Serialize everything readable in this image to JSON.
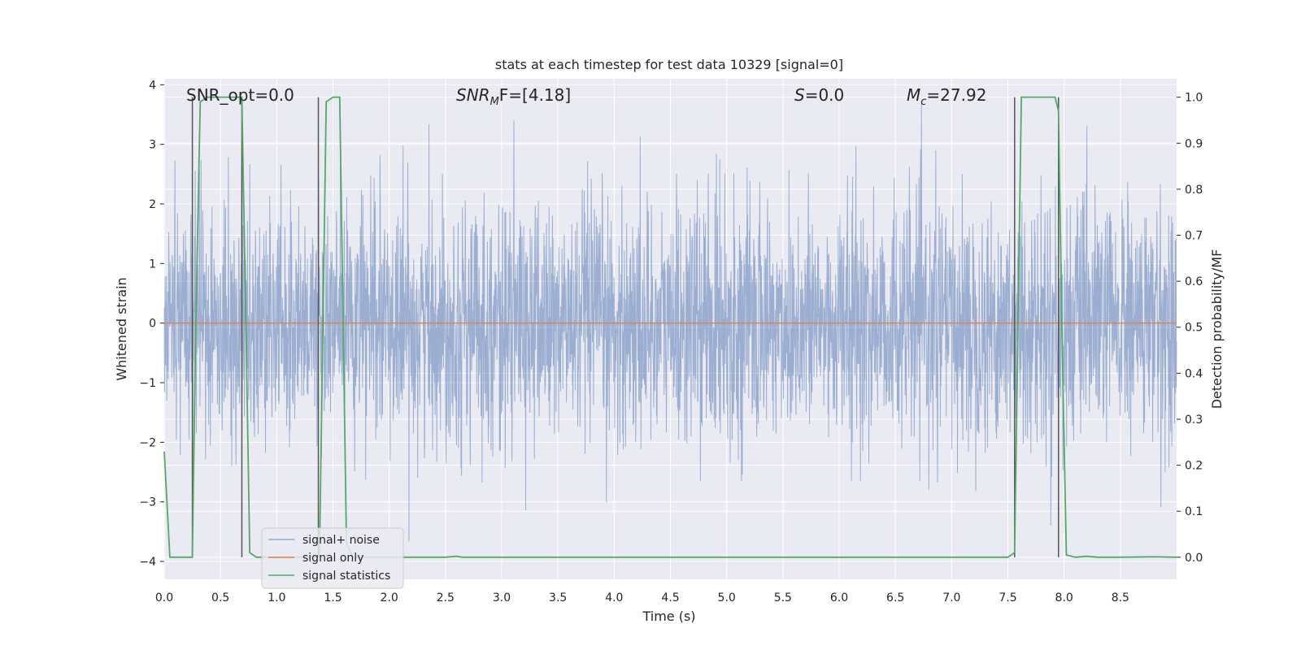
{
  "chart_data": {
    "type": "line",
    "title": "stats at each timestep for test data 10329 [signal=0]",
    "xlabel": "Time (s)",
    "ylabel": "Whitened strain",
    "ylabel_right": "Detection probability/MF",
    "xlim": [
      0.0,
      9.0
    ],
    "ylim": [
      -4.3,
      4.1
    ],
    "ylim_right": [
      -0.048,
      1.04
    ],
    "xticks": [
      "0.0",
      "0.5",
      "1.0",
      "1.5",
      "2.0",
      "2.5",
      "3.0",
      "3.5",
      "4.0",
      "4.5",
      "5.0",
      "5.5",
      "6.0",
      "6.5",
      "7.0",
      "7.5",
      "8.0",
      "8.5"
    ],
    "yticks": [
      "4",
      "3",
      "2",
      "1",
      "0",
      "−1",
      "−2",
      "−3",
      "−4"
    ],
    "yticks_right": [
      "1.0",
      "0.9",
      "0.8",
      "0.7",
      "0.6",
      "0.5",
      "0.4",
      "0.3",
      "0.2",
      "0.1",
      "0.0"
    ],
    "annotations": {
      "snr_opt": "SNR_opt=0.0",
      "snr_mf": "SNR",
      "snr_mf_sub": "M",
      "snr_mf_rest": "F=[4.18]",
      "s_label": "S",
      "s_value": "=0.0",
      "mc_label": "M",
      "mc_sub": "c",
      "mc_value": "=27.92"
    },
    "legend": {
      "position": "lower-left",
      "entries": [
        "signal+ noise",
        "signal only",
        "signal statistics"
      ]
    },
    "colors": {
      "noise": "#4c72b0",
      "signal": "#dd8452",
      "statistics": "#55a868",
      "markers": "#555555",
      "background": "#eaeaf2"
    },
    "series": [
      {
        "name": "signal+ noise",
        "axis": "left",
        "description": "whitened strain noise, approx. Gaussian, sigma ~1"
      },
      {
        "name": "signal only",
        "axis": "left",
        "values": "constant 0"
      },
      {
        "name": "signal statistics",
        "axis": "right",
        "x": [
          0.0,
          0.05,
          0.25,
          0.28,
          0.32,
          0.38,
          0.69,
          0.73,
          0.76,
          0.82,
          1.38,
          1.44,
          1.5,
          1.56,
          1.62,
          1.68,
          2.5,
          2.6,
          2.65,
          7.5,
          7.56,
          7.62,
          7.92,
          7.95,
          7.98,
          8.02,
          8.1,
          8.2,
          8.3,
          8.5,
          8.8,
          9.0
        ],
        "values": [
          0.23,
          0.0,
          0.0,
          0.5,
          0.99,
          1.0,
          1.0,
          0.45,
          0.01,
          0.0,
          0.0,
          0.99,
          1.0,
          1.0,
          0.03,
          0.0,
          0.0,
          0.002,
          0.0,
          0.0,
          0.01,
          1.0,
          1.0,
          0.97,
          0.5,
          0.005,
          0.0,
          0.002,
          0.0,
          0.0,
          0.001,
          0.0
        ]
      }
    ],
    "vertical_markers": [
      0.25,
      0.69,
      1.37,
      7.56,
      7.95
    ]
  }
}
